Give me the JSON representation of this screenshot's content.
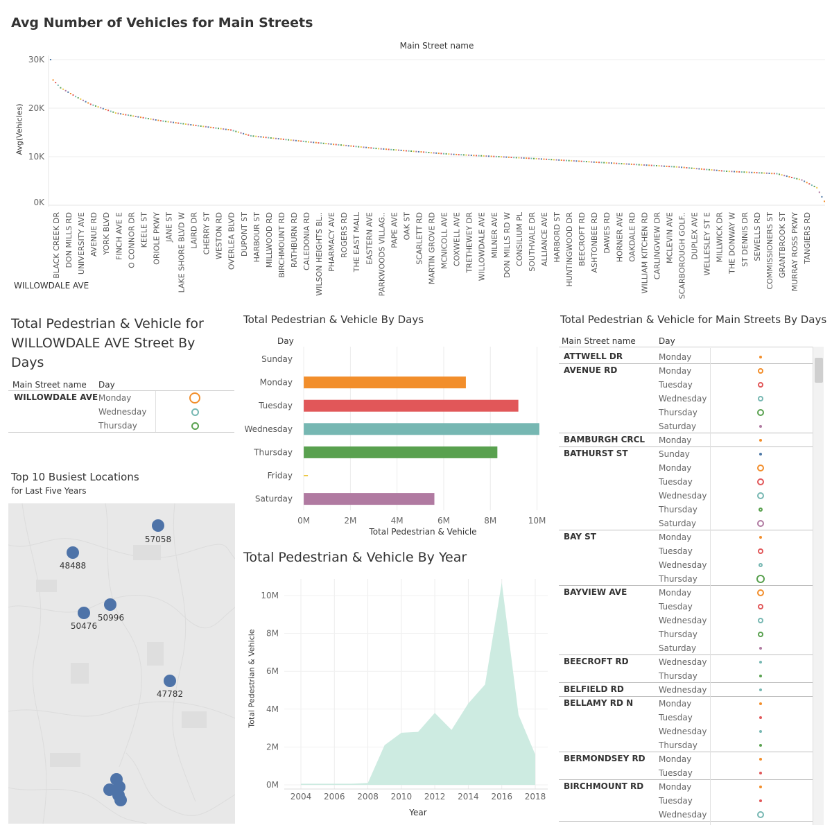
{
  "top_chart": {
    "title": "Avg Number of Vehicles for Main Streets",
    "col_header": "Main Street name",
    "ylabel": "Avg(Vehicles)",
    "filter_label": "WILLOWDALE AVE",
    "y_ticks": [
      "30K",
      "20K",
      "10K",
      "0K"
    ],
    "streets": [
      "BLACK CREEK DR",
      "DON MILLS RD",
      "UNIVERSITY AVE",
      "AVENUE RD",
      "YORK BLVD",
      "FINCH AVE E",
      "O CONNOR DR",
      "KEELE ST",
      "ORIOLE PKWY",
      "JANE ST",
      "LAKE SHORE BLVD W",
      "LAIRD DR",
      "CHERRY ST",
      "WESTON RD",
      "OVERLEA BLVD",
      "DUPONT ST",
      "HARBOUR ST",
      "MILLWOOD RD",
      "BIRCHMOUNT RD",
      "RATHBURN RD",
      "CALEDONIA RD",
      "WILSON HEIGHTS BL..",
      "PHARMACY AVE",
      "ROGERS RD",
      "THE EAST MALL",
      "EASTERN AVE",
      "PARKWOODS VILLAG..",
      "PAPE AVE",
      "OAK ST",
      "SCARLETT RD",
      "MARTIN GROVE RD",
      "MCNICOLL AVE",
      "COXWELL AVE",
      "TRETHEWEY DR",
      "WILLOWDALE AVE",
      "MILNER AVE",
      "DON MILLS RD W",
      "CONSILIUM PL",
      "SOUTHVALE DR",
      "ALLIANCE AVE",
      "HARBORD ST",
      "HUNTINGWOOD DR",
      "BEECROFT RD",
      "ASHTONBEE RD",
      "DAWES RD",
      "HORNER AVE",
      "OAKDALE RD",
      "WILLIAM KITCHEN RD",
      "CARLINGVIEW DR",
      "MCLEVIN AVE",
      "SCARBOROUGH GOLF..",
      "DUPLEX AVE",
      "WELLESLEY ST E",
      "MILLWICK DR",
      "THE DONWAY W",
      "ST DENNIS DR",
      "SEWELLS RD",
      "COMMISSIONERS ST",
      "GRANTBROOK ST",
      "MURRAY ROSS PKWY",
      "TANGIERS RD"
    ]
  },
  "chart_data": [
    {
      "type": "scatter",
      "title": "Avg Number of Vehicles for Main Streets",
      "xlabel": "Main Street name",
      "ylabel": "Avg(Vehicles)",
      "ylim": [
        0,
        30000
      ],
      "points_count": 310,
      "y_curve": [
        [
          0,
          30000
        ],
        [
          1,
          25800
        ],
        [
          4,
          24200
        ],
        [
          10,
          22400
        ],
        [
          16,
          20800
        ],
        [
          26,
          19000
        ],
        [
          44,
          17400
        ],
        [
          60,
          16300
        ],
        [
          72,
          15500
        ],
        [
          80,
          14300
        ],
        [
          100,
          13200
        ],
        [
          130,
          11700
        ],
        [
          160,
          10500
        ],
        [
          190,
          9700
        ],
        [
          220,
          8800
        ],
        [
          250,
          7900
        ],
        [
          270,
          7000
        ],
        [
          290,
          6500
        ],
        [
          300,
          5200
        ],
        [
          306,
          3600
        ],
        [
          309,
          800
        ]
      ]
    },
    {
      "type": "table",
      "title": "Total Pedestrian & Vehicle for WILLOWDALE AVE  Street By Days",
      "columns": [
        "Main Street name",
        "Day"
      ],
      "street": "WILLOWDALE AVE",
      "rows": [
        {
          "day": "Monday",
          "color": "#f28e2b",
          "size": 2
        },
        {
          "day": "Wednesday",
          "color": "#76b7b2",
          "size": 1
        },
        {
          "day": "Thursday",
          "color": "#59a14f",
          "size": 1
        }
      ]
    },
    {
      "type": "bar",
      "title": "Total Pedestrian & Vehicle By Days",
      "row_header": "Day",
      "xlabel": "Total Pedestrian & Vehicle",
      "categories": [
        "Sunday",
        "Monday",
        "Tuesday",
        "Wednesday",
        "Thursday",
        "Friday",
        "Saturday"
      ],
      "values": [
        0,
        6950000,
        9200000,
        10100000,
        8300000,
        50000,
        5600000
      ],
      "colors": [
        "#4e79a7",
        "#f28e2b",
        "#e15759",
        "#76b7b2",
        "#59a14f",
        "#edc948",
        "#b07aa1"
      ],
      "xlim": [
        0,
        10500000
      ],
      "x_ticks": [
        "0M",
        "2M",
        "4M",
        "6M",
        "8M",
        "10M"
      ]
    },
    {
      "type": "area",
      "title": "Total Pedestrian & Vehicle By Year",
      "xlabel": "Year",
      "ylabel": "Total Pedestrian & Vehicle",
      "x": [
        2004,
        2005,
        2006,
        2007,
        2008,
        2009,
        2010,
        2011,
        2012,
        2013,
        2014,
        2015,
        2016,
        2017,
        2018
      ],
      "values": [
        0,
        0,
        0,
        0,
        100000,
        2100000,
        2750000,
        2800000,
        3800000,
        2900000,
        4300000,
        5300000,
        10700000,
        3700000,
        1600000
      ],
      "ylim": [
        0,
        11000000
      ],
      "y_ticks": [
        "10M",
        "8M",
        "6M",
        "4M",
        "2M",
        "0M"
      ],
      "x_ticks": [
        "2004",
        "2006",
        "2008",
        "2010",
        "2012",
        "2014",
        "2016",
        "2018"
      ],
      "color": "#cdebe1"
    },
    {
      "type": "scatter",
      "title": "Top 10 Busiest Locations",
      "subtitle": "for Last Five Years",
      "labeled_points": [
        "57058",
        "48488",
        "50996",
        "50476",
        "47782"
      ],
      "unlabeled_count": 5
    }
  ],
  "days_table": {
    "title": "Total Pedestrian & Vehicle for Main Streets By Days",
    "col_street": "Main Street name",
    "col_day": "Day",
    "groups": [
      {
        "street": "ATTWELL DR",
        "rows": [
          [
            "Monday",
            "#f28e2b",
            2
          ]
        ]
      },
      {
        "street": "AVENUE RD",
        "rows": [
          [
            "Monday",
            "#f28e2b",
            4
          ],
          [
            "Tuesday",
            "#e15759",
            4
          ],
          [
            "Wednesday",
            "#76b7b2",
            4
          ],
          [
            "Thursday",
            "#59a14f",
            5
          ],
          [
            "Saturday",
            "#b07aa1",
            2
          ]
        ]
      },
      {
        "street": "BAMBURGH CRCL",
        "rows": [
          [
            "Monday",
            "#f28e2b",
            2
          ]
        ]
      },
      {
        "street": "BATHURST ST",
        "rows": [
          [
            "Sunday",
            "#4e79a7",
            2
          ],
          [
            "Monday",
            "#f28e2b",
            5
          ],
          [
            "Tuesday",
            "#e15759",
            5
          ],
          [
            "Wednesday",
            "#76b7b2",
            5
          ],
          [
            "Thursday",
            "#59a14f",
            3
          ],
          [
            "Saturday",
            "#b07aa1",
            5
          ]
        ]
      },
      {
        "street": "BAY ST",
        "rows": [
          [
            "Monday",
            "#f28e2b",
            2
          ],
          [
            "Tuesday",
            "#e15759",
            4
          ],
          [
            "Wednesday",
            "#76b7b2",
            3
          ],
          [
            "Thursday",
            "#59a14f",
            6
          ]
        ]
      },
      {
        "street": "BAYVIEW AVE",
        "rows": [
          [
            "Monday",
            "#f28e2b",
            5
          ],
          [
            "Tuesday",
            "#e15759",
            4
          ],
          [
            "Wednesday",
            "#76b7b2",
            4
          ],
          [
            "Thursday",
            "#59a14f",
            4
          ],
          [
            "Saturday",
            "#b07aa1",
            2
          ]
        ]
      },
      {
        "street": "BEECROFT RD",
        "rows": [
          [
            "Wednesday",
            "#76b7b2",
            2
          ],
          [
            "Thursday",
            "#59a14f",
            2
          ]
        ]
      },
      {
        "street": "BELFIELD RD",
        "rows": [
          [
            "Wednesday",
            "#76b7b2",
            2
          ]
        ]
      },
      {
        "street": "BELLAMY RD N",
        "rows": [
          [
            "Monday",
            "#f28e2b",
            2
          ],
          [
            "Tuesday",
            "#e15759",
            2
          ],
          [
            "Wednesday",
            "#76b7b2",
            2
          ],
          [
            "Thursday",
            "#59a14f",
            2
          ]
        ]
      },
      {
        "street": "BERMONDSEY RD",
        "rows": [
          [
            "Monday",
            "#f28e2b",
            2
          ],
          [
            "Tuesday",
            "#e15759",
            2
          ]
        ]
      },
      {
        "street": "BIRCHMOUNT RD",
        "rows": [
          [
            "Monday",
            "#f28e2b",
            2
          ],
          [
            "Tuesday",
            "#e15759",
            2
          ],
          [
            "Wednesday",
            "#76b7b2",
            5
          ]
        ]
      }
    ]
  },
  "colors": {
    "sunday": "#4e79a7",
    "monday": "#f28e2b",
    "tuesday": "#e15759",
    "wednesday": "#76b7b2",
    "thursday": "#59a14f",
    "friday": "#edc948",
    "saturday": "#b07aa1",
    "map_marker": "#4e73a8",
    "area_fill": "#cdebe1"
  }
}
